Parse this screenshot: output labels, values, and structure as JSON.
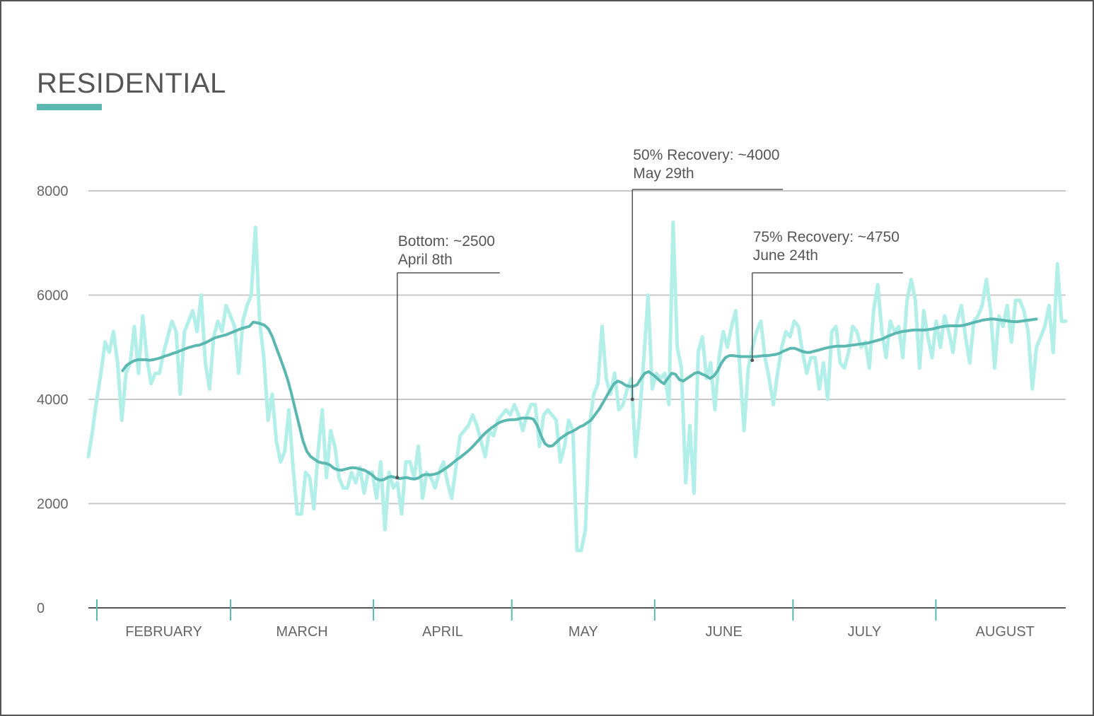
{
  "header": {
    "title": "RESIDENTIAL"
  },
  "colors": {
    "accent": "#5bb8b0",
    "raw_line": "#b3efe9",
    "avg_line": "#5bb8b0",
    "grid": "#c8c8c8",
    "axis": "#555555",
    "text": "#666666"
  },
  "chart_data": {
    "type": "line",
    "title": "RESIDENTIAL",
    "xlabel": "",
    "ylabel": "",
    "ylim": [
      0,
      8000
    ],
    "yticks": [
      0,
      2000,
      4000,
      6000,
      8000
    ],
    "grid": true,
    "x_start": "2020-02-01",
    "x_end": "2020-08-31",
    "month_labels": [
      "FEBRUARY",
      "MARCH",
      "APRIL",
      "MAY",
      "JUNE",
      "JULY",
      "AUGUST"
    ],
    "series": [
      {
        "values": [
          2900,
          3400,
          4000,
          4500,
          5100,
          4900,
          5300,
          4700,
          3600,
          4500,
          4700,
          5400,
          4500,
          5600,
          4800,
          4300,
          4500,
          4500,
          4900,
          5200,
          5500,
          5300,
          4100,
          5300,
          5500,
          5700,
          5300,
          6000,
          4700,
          4200,
          5200,
          5500,
          5300,
          5800,
          5600,
          5400,
          4500,
          5500,
          5800,
          6000,
          7300,
          5500,
          4800,
          3600,
          4100,
          3200,
          2800,
          3000,
          3800,
          2700,
          1800,
          1800,
          2600,
          2500,
          1900,
          3000,
          3800,
          2500,
          3400,
          3100,
          2500,
          2300,
          2300,
          2600,
          2400,
          2700,
          2200,
          2600,
          2600,
          2100,
          2800,
          1500,
          2600,
          2300,
          2400,
          1800,
          2800,
          2800,
          2500,
          3100,
          2100,
          2600,
          2500,
          2300,
          2600,
          2800,
          2400,
          2100,
          2700,
          3300,
          3400,
          3500,
          3700,
          3500,
          3200,
          2900,
          3400,
          3300,
          3600,
          3700,
          3800,
          3700,
          3900,
          3700,
          3400,
          3700,
          3900,
          3900,
          3100,
          3700,
          3800,
          3700,
          3600,
          2800,
          3100,
          3600,
          3400,
          1100,
          1100,
          1500,
          3500,
          4100,
          4300,
          5400,
          4400,
          4100,
          4500,
          3800,
          3900,
          4200,
          4400,
          2900,
          3700,
          4800,
          6000,
          4200,
          4500,
          4400,
          4500,
          3900,
          7400,
          5000,
          4600,
          2400,
          3500,
          2200,
          4900,
          5200,
          4400,
          4700,
          3800,
          4800,
          5300,
          5000,
          5400,
          5700,
          4600,
          3400,
          4600,
          5000,
          5300,
          5500,
          4800,
          4400,
          3900,
          4500,
          5000,
          5300,
          5200,
          5500,
          5400,
          4900,
          4500,
          4800,
          4800,
          4200,
          4700,
          4000,
          5300,
          5400,
          4700,
          4600,
          4900,
          5400,
          5300,
          5000,
          5100,
          4600,
          5700,
          6200,
          5300,
          4800,
          5500,
          5300,
          5400,
          4800,
          5900,
          6300,
          5900,
          4600,
          5700,
          5200,
          4800,
          5500,
          5000,
          5600,
          5300,
          4900,
          5500,
          5800,
          5200,
          4700,
          5500,
          5600,
          5800,
          6300,
          5700,
          4600,
          5600,
          5400,
          5800,
          5100,
          5900,
          5900,
          5700,
          5300,
          4200,
          5000,
          5200,
          5400,
          5800,
          4900,
          6600,
          5500,
          5500
        ]
      },
      {
        "values": [
          4550,
          4650,
          4700,
          4740,
          4760,
          4760,
          4760,
          4750,
          4760,
          4780,
          4800,
          4830,
          4850,
          4880,
          4900,
          4930,
          4960,
          4990,
          5010,
          5030,
          5040,
          5070,
          5100,
          5140,
          5180,
          5200,
          5220,
          5240,
          5270,
          5300,
          5330,
          5360,
          5380,
          5400,
          5480,
          5470,
          5450,
          5420,
          5350,
          5200,
          5000,
          4800,
          4600,
          4380,
          4100,
          3800,
          3500,
          3200,
          3000,
          2900,
          2850,
          2800,
          2780,
          2770,
          2740,
          2680,
          2650,
          2640,
          2660,
          2680,
          2690,
          2680,
          2660,
          2640,
          2600,
          2550,
          2480,
          2450,
          2460,
          2500,
          2520,
          2500,
          2480,
          2490,
          2500,
          2480,
          2470,
          2490,
          2540,
          2560,
          2550,
          2560,
          2580,
          2620,
          2670,
          2720,
          2780,
          2840,
          2890,
          2950,
          3010,
          3080,
          3160,
          3240,
          3320,
          3390,
          3450,
          3500,
          3550,
          3580,
          3600,
          3610,
          3610,
          3620,
          3640,
          3640,
          3640,
          3620,
          3500,
          3300,
          3150,
          3100,
          3110,
          3180,
          3250,
          3300,
          3350,
          3380,
          3420,
          3470,
          3500,
          3550,
          3600,
          3700,
          3800,
          3920,
          4050,
          4180,
          4300,
          4350,
          4320,
          4270,
          4250,
          4250,
          4280,
          4400,
          4500,
          4530,
          4480,
          4420,
          4350,
          4300,
          4400,
          4500,
          4480,
          4380,
          4350,
          4400,
          4450,
          4500,
          4520,
          4480,
          4450,
          4400,
          4450,
          4550,
          4700,
          4800,
          4840,
          4840,
          4830,
          4820,
          4820,
          4820,
          4820,
          4820,
          4830,
          4840,
          4840,
          4850,
          4860,
          4880,
          4920,
          4950,
          4980,
          4980,
          4950,
          4920,
          4900,
          4900,
          4920,
          4940,
          4960,
          4980,
          5000,
          5010,
          5020,
          5020,
          5020,
          5030,
          5040,
          5050,
          5060,
          5070,
          5080,
          5100,
          5120,
          5140,
          5160,
          5200,
          5230,
          5260,
          5280,
          5300,
          5310,
          5320,
          5330,
          5330,
          5330,
          5330,
          5340,
          5350,
          5370,
          5390,
          5400,
          5410,
          5410,
          5410,
          5410,
          5420,
          5440,
          5460,
          5480,
          5500,
          5520,
          5530,
          5540,
          5540,
          5530,
          5520,
          5510,
          5500,
          5490,
          5490,
          5500,
          5510,
          5520,
          5530,
          5540
        ]
      }
    ],
    "annotations": [
      {
        "line1": "Bottom: ~2500",
        "line2": "April 8th",
        "date": "2020-04-08",
        "value": 2500
      },
      {
        "line1": "50% Recovery: ~4000",
        "line2": "May 29th",
        "date": "2020-05-29",
        "value": 4000
      },
      {
        "line1": "75% Recovery: ~4750",
        "line2": "June 24th",
        "date": "2020-06-24",
        "value": 4750
      }
    ]
  }
}
